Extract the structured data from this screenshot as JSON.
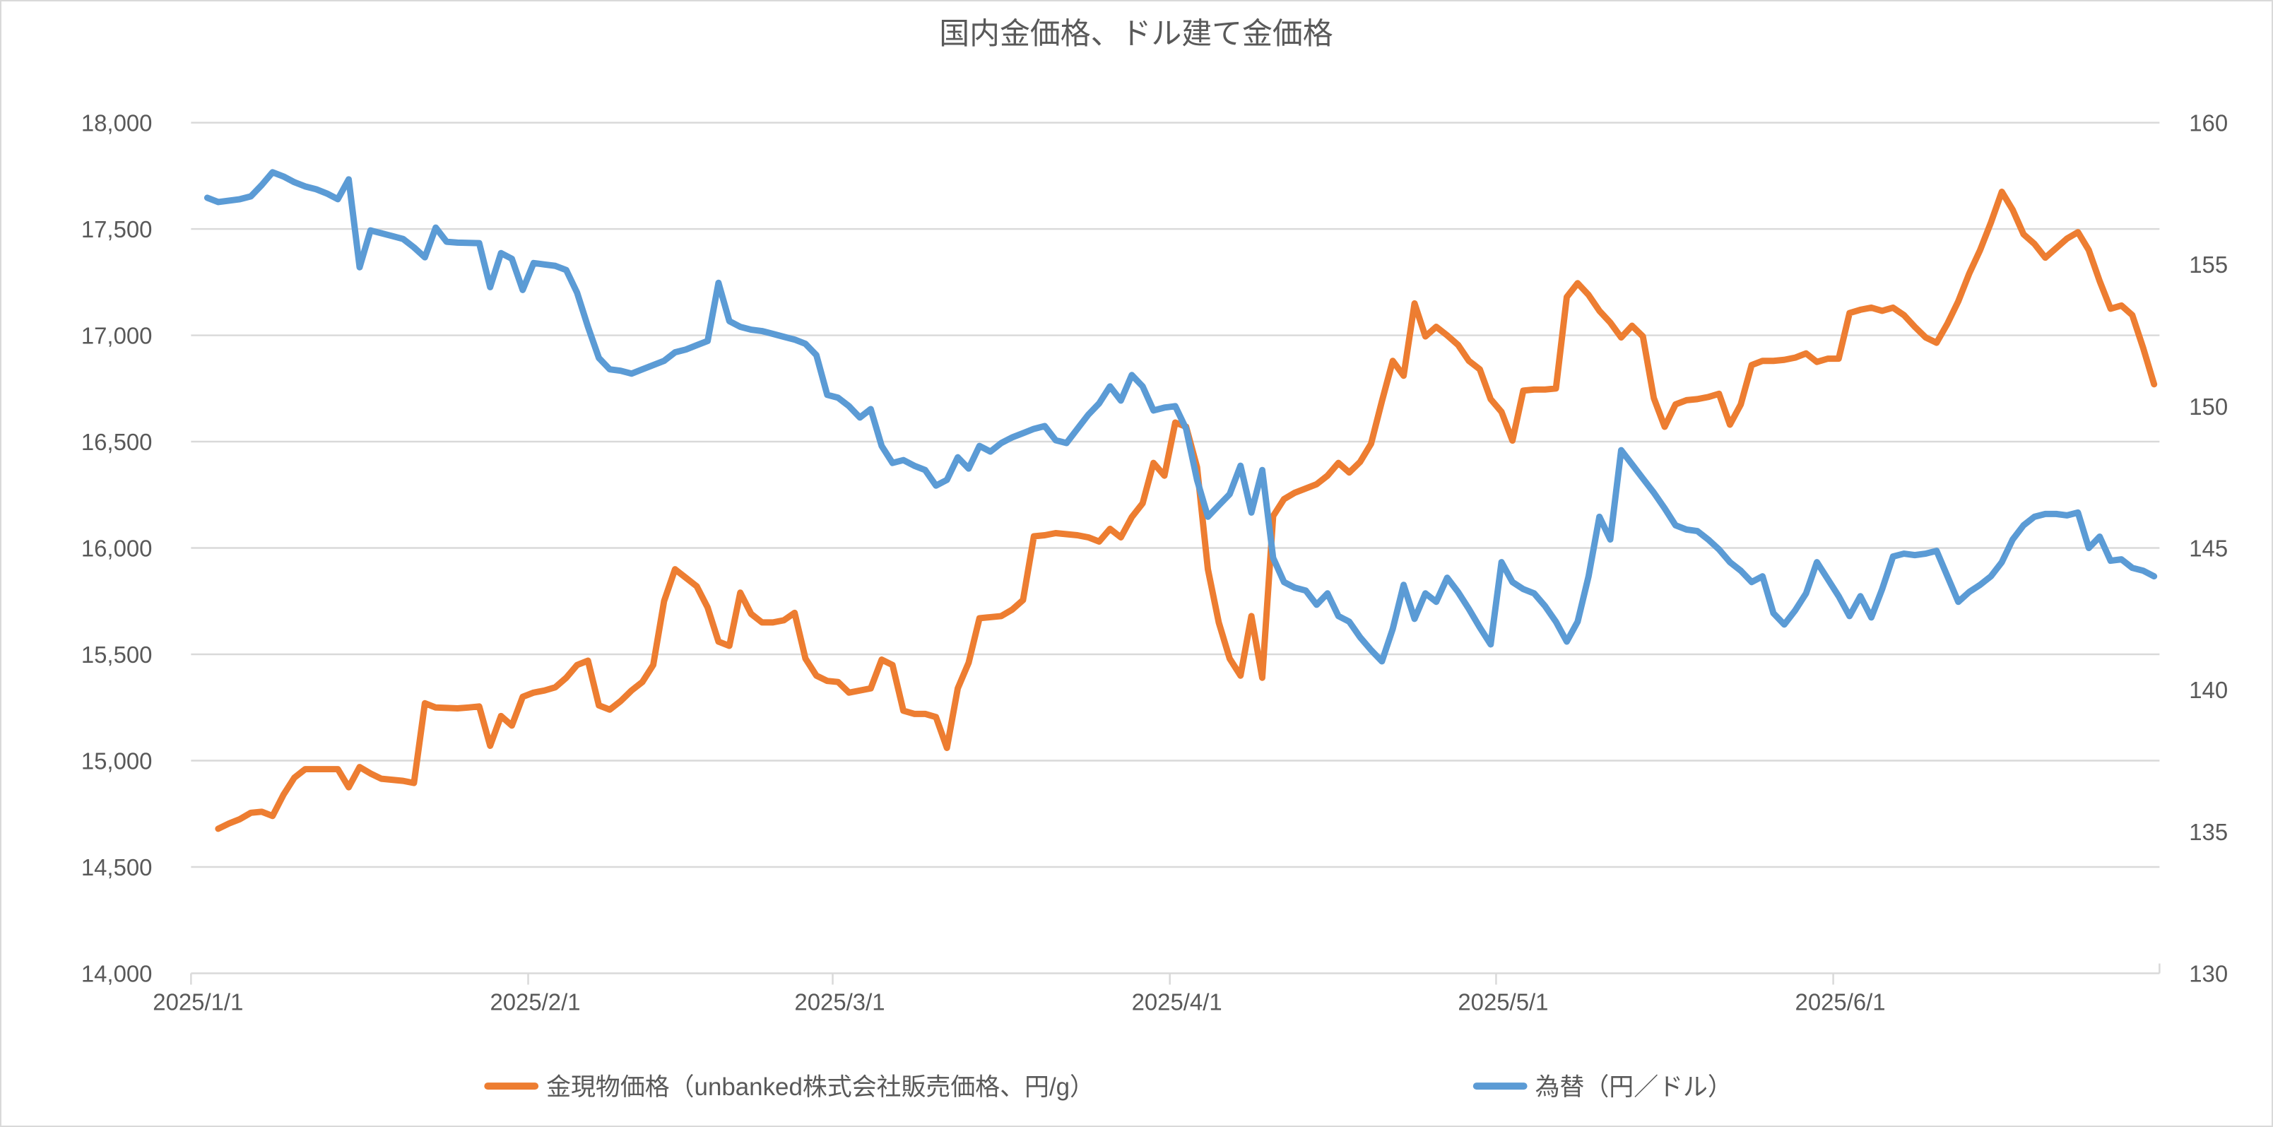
{
  "title": "国内金価格、ドル建て金価格",
  "colors": {
    "gold_series": "#ED7D31",
    "fx_series": "#5B9BD5",
    "gridline": "#D9D9D9",
    "axis_text": "#595959",
    "background": "#FFFFFF"
  },
  "chart_data": {
    "type": "line",
    "title": "国内金価格、ドル建て金価格",
    "grid": "horizontal",
    "legend_position": "bottom",
    "left_axis": {
      "min": 14000,
      "max": 18000,
      "step": 500,
      "tick_labels": [
        "18,000",
        "17,500",
        "17,000",
        "16,500",
        "16,000",
        "15,500",
        "15,000",
        "14,500",
        "14,000"
      ]
    },
    "right_axis": {
      "min": 130,
      "max": 160,
      "step": 5,
      "tick_labels": [
        "160",
        "155",
        "150",
        "145",
        "140",
        "135",
        "130"
      ]
    },
    "x_tick_labels": [
      {
        "index": 0,
        "label": "2025/1/1"
      },
      {
        "index": 31,
        "label": "2025/2/1"
      },
      {
        "index": 59,
        "label": "2025/3/1"
      },
      {
        "index": 90,
        "label": "2025/4/1"
      },
      {
        "index": 120,
        "label": "2025/5/1"
      },
      {
        "index": 151,
        "label": "2025/6/1"
      }
    ],
    "x": [
      "2025/1/1",
      "2025/1/2",
      "2025/1/3",
      "2025/1/4",
      "2025/1/5",
      "2025/1/6",
      "2025/1/7",
      "2025/1/8",
      "2025/1/9",
      "2025/1/10",
      "2025/1/11",
      "2025/1/12",
      "2025/1/13",
      "2025/1/14",
      "2025/1/15",
      "2025/1/16",
      "2025/1/17",
      "2025/1/18",
      "2025/1/19",
      "2025/1/20",
      "2025/1/21",
      "2025/1/22",
      "2025/1/23",
      "2025/1/24",
      "2025/1/25",
      "2025/1/26",
      "2025/1/27",
      "2025/1/28",
      "2025/1/29",
      "2025/1/30",
      "2025/1/31",
      "2025/2/1",
      "2025/2/2",
      "2025/2/3",
      "2025/2/4",
      "2025/2/5",
      "2025/2/6",
      "2025/2/7",
      "2025/2/8",
      "2025/2/9",
      "2025/2/10",
      "2025/2/11",
      "2025/2/12",
      "2025/2/13",
      "2025/2/14",
      "2025/2/15",
      "2025/2/16",
      "2025/2/17",
      "2025/2/18",
      "2025/2/19",
      "2025/2/20",
      "2025/2/21",
      "2025/2/22",
      "2025/2/23",
      "2025/2/24",
      "2025/2/25",
      "2025/2/26",
      "2025/2/27",
      "2025/2/28",
      "2025/3/1",
      "2025/3/2",
      "2025/3/3",
      "2025/3/4",
      "2025/3/5",
      "2025/3/6",
      "2025/3/7",
      "2025/3/8",
      "2025/3/9",
      "2025/3/10",
      "2025/3/11",
      "2025/3/12",
      "2025/3/13",
      "2025/3/14",
      "2025/3/15",
      "2025/3/16",
      "2025/3/17",
      "2025/3/18",
      "2025/3/19",
      "2025/3/20",
      "2025/3/21",
      "2025/3/22",
      "2025/3/23",
      "2025/3/24",
      "2025/3/25",
      "2025/3/26",
      "2025/3/27",
      "2025/3/28",
      "2025/3/29",
      "2025/3/30",
      "2025/3/31",
      "2025/4/1",
      "2025/4/2",
      "2025/4/3",
      "2025/4/4",
      "2025/4/5",
      "2025/4/6",
      "2025/4/7",
      "2025/4/8",
      "2025/4/9",
      "2025/4/10",
      "2025/4/11",
      "2025/4/12",
      "2025/4/13",
      "2025/4/14",
      "2025/4/15",
      "2025/4/16",
      "2025/4/17",
      "2025/4/18",
      "2025/4/19",
      "2025/4/20",
      "2025/4/21",
      "2025/4/22",
      "2025/4/23",
      "2025/4/24",
      "2025/4/25",
      "2025/4/26",
      "2025/4/27",
      "2025/4/28",
      "2025/4/29",
      "2025/4/30",
      "2025/5/1",
      "2025/5/2",
      "2025/5/3",
      "2025/5/4",
      "2025/5/5",
      "2025/5/6",
      "2025/5/7",
      "2025/5/8",
      "2025/5/9",
      "2025/5/10",
      "2025/5/11",
      "2025/5/12",
      "2025/5/13",
      "2025/5/14",
      "2025/5/15",
      "2025/5/16",
      "2025/5/17",
      "2025/5/18",
      "2025/5/19",
      "2025/5/20",
      "2025/5/21",
      "2025/5/22",
      "2025/5/23",
      "2025/5/24",
      "2025/5/25",
      "2025/5/26",
      "2025/5/27",
      "2025/5/28",
      "2025/5/29",
      "2025/5/30",
      "2025/5/31",
      "2025/6/1",
      "2025/6/2",
      "2025/6/3",
      "2025/6/4",
      "2025/6/5",
      "2025/6/6",
      "2025/6/7",
      "2025/6/8",
      "2025/6/9",
      "2025/6/10",
      "2025/6/11",
      "2025/6/12",
      "2025/6/13",
      "2025/6/14",
      "2025/6/15",
      "2025/6/16",
      "2025/6/17",
      "2025/6/18",
      "2025/6/19",
      "2025/6/20",
      "2025/6/21",
      "2025/6/22",
      "2025/6/23",
      "2025/6/24",
      "2025/6/25",
      "2025/6/26",
      "2025/6/27",
      "2025/6/28",
      "2025/6/29",
      "2025/6/30"
    ],
    "series": [
      {
        "name": "金現物価格（unbanked株式会社販売価格、円/g）",
        "axis": "left",
        "color": "#ED7D31",
        "values": [
          null,
          null,
          14680,
          14705,
          14725,
          14755,
          14760,
          14740,
          14840,
          14920,
          14960,
          14960,
          14960,
          14960,
          14875,
          14970,
          14940,
          14915,
          14910,
          14905,
          14895,
          15270,
          15250,
          15248,
          15246,
          15250,
          15255,
          15070,
          15210,
          15165,
          15300,
          15320,
          15330,
          15345,
          15390,
          15450,
          15470,
          15260,
          15240,
          15280,
          15330,
          15370,
          15450,
          15750,
          15900,
          15860,
          15820,
          15720,
          15560,
          15540,
          15790,
          15690,
          15650,
          15650,
          15660,
          15695,
          15480,
          15400,
          15375,
          15370,
          15320,
          15330,
          15340,
          15475,
          15450,
          15235,
          15220,
          15220,
          15205,
          15060,
          15340,
          15460,
          15670,
          15675,
          15680,
          15710,
          15755,
          16055,
          16060,
          16070,
          16065,
          16060,
          16050,
          16030,
          16090,
          16050,
          16145,
          16210,
          16400,
          16340,
          16590,
          16570,
          16380,
          15900,
          15650,
          15480,
          15400,
          15680,
          15390,
          16150,
          16230,
          16260,
          16280,
          16300,
          16340,
          16400,
          16355,
          16405,
          16490,
          16690,
          16880,
          16810,
          17150,
          16995,
          17040,
          17000,
          16955,
          16880,
          16840,
          16700,
          16640,
          16505,
          16740,
          16745,
          16745,
          16750,
          17180,
          17245,
          17190,
          17115,
          17060,
          16990,
          17045,
          16995,
          16705,
          16570,
          16675,
          16695,
          16700,
          16710,
          16725,
          16580,
          16675,
          16860,
          16880,
          16880,
          16885,
          16895,
          16915,
          16875,
          16890,
          16890,
          17105,
          17120,
          17130,
          17115,
          17130,
          17095,
          17040,
          16990,
          16965,
          17055,
          17160,
          17290,
          17400,
          17530,
          17675,
          17590,
          17475,
          17430,
          17365,
          17410,
          17455,
          17485,
          17400,
          17255,
          17125,
          17140,
          17095,
          16940,
          16770
        ]
      },
      {
        "name": "為替（円／ドル）",
        "axis": "right",
        "color": "#5B9BD5",
        "values": [
          null,
          157.35,
          157.2,
          157.25,
          157.3,
          157.4,
          157.8,
          158.25,
          158.1,
          157.9,
          157.75,
          157.65,
          157.5,
          157.3,
          158.0,
          154.9,
          156.2,
          156.1,
          156.0,
          155.9,
          155.6,
          155.25,
          156.3,
          155.8,
          155.77,
          155.76,
          155.75,
          154.2,
          155.4,
          155.2,
          154.1,
          155.05,
          155.0,
          154.95,
          154.8,
          154.0,
          152.8,
          151.7,
          151.3,
          151.25,
          151.15,
          151.3,
          151.45,
          151.6,
          151.9,
          152.0,
          152.15,
          152.3,
          154.35,
          153.0,
          152.8,
          152.7,
          152.65,
          152.55,
          152.45,
          152.35,
          152.2,
          151.8,
          150.4,
          150.3,
          150.0,
          149.6,
          149.9,
          148.6,
          148.0,
          148.1,
          147.9,
          147.75,
          147.2,
          147.4,
          148.2,
          147.8,
          148.6,
          148.4,
          148.7,
          148.9,
          149.05,
          149.2,
          149.3,
          148.8,
          148.7,
          149.2,
          149.7,
          150.1,
          150.7,
          150.2,
          151.1,
          150.7,
          149.85,
          149.95,
          150.0,
          149.2,
          147.4,
          146.1,
          146.5,
          146.9,
          147.9,
          146.25,
          147.75,
          144.65,
          143.8,
          143.6,
          143.5,
          143.0,
          143.4,
          142.6,
          142.4,
          141.85,
          141.4,
          141.0,
          142.15,
          143.7,
          142.5,
          143.4,
          143.1,
          143.95,
          143.45,
          142.85,
          142.2,
          141.6,
          144.5,
          143.8,
          143.55,
          143.4,
          142.95,
          142.4,
          141.7,
          142.4,
          144.0,
          146.1,
          145.3,
          148.45,
          147.95,
          147.45,
          146.95,
          146.4,
          145.8,
          145.65,
          145.6,
          145.3,
          144.95,
          144.5,
          144.2,
          143.8,
          144.0,
          142.7,
          142.3,
          142.8,
          143.4,
          144.5,
          143.9,
          143.3,
          142.6,
          143.3,
          142.55,
          143.55,
          144.7,
          144.8,
          144.75,
          144.8,
          144.9,
          144.0,
          143.1,
          143.45,
          143.7,
          144.0,
          144.5,
          145.3,
          145.8,
          146.1,
          146.2,
          146.2,
          146.15,
          146.25,
          145.0,
          145.4,
          144.55,
          144.6,
          144.3,
          144.2,
          144.0
        ]
      }
    ]
  }
}
